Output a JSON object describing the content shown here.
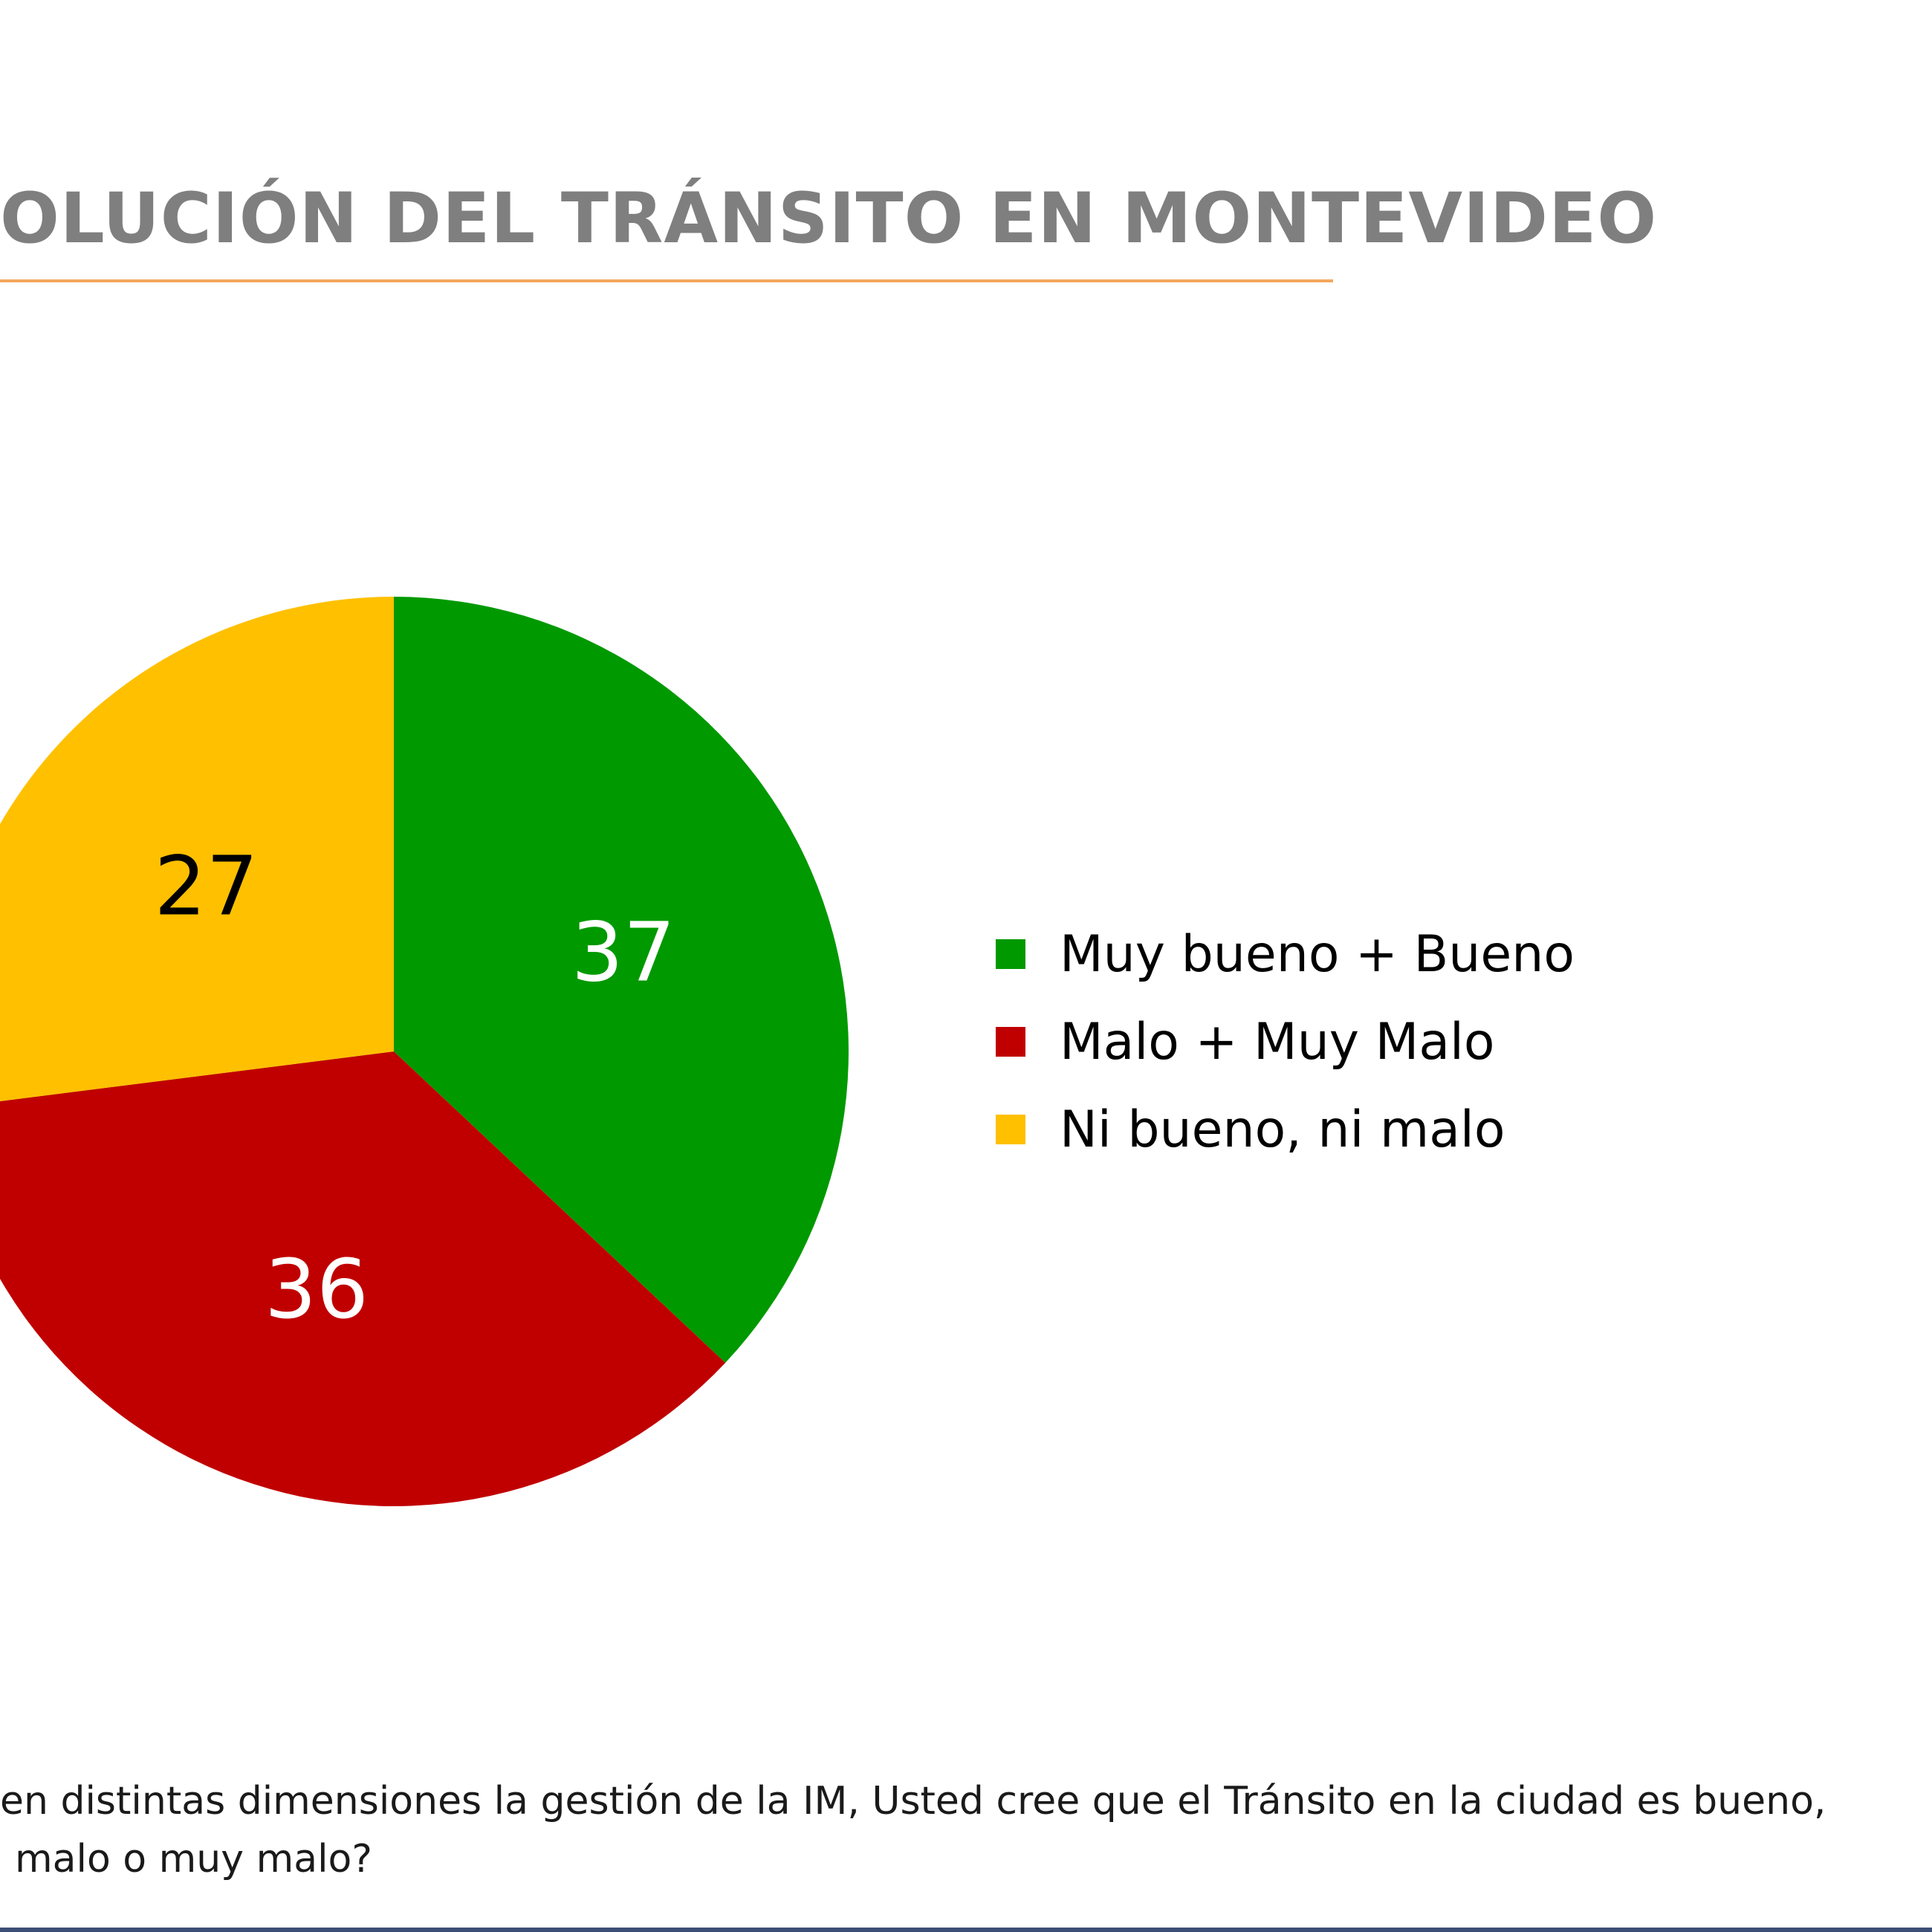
{
  "title": "OLUCIÓN DEL TRÁNSITO EN MONTEVIDEO",
  "colors": {
    "title": "#7f7f7f",
    "rule": "#f4a760",
    "footer_rule": "#3c4f75"
  },
  "chart_data": {
    "type": "pie",
    "title": "",
    "slices": [
      {
        "label": "Muy bueno + Bueno",
        "value": 37,
        "color": "#009900",
        "label_color": "#ffffff"
      },
      {
        "label": "Malo + Muy Malo",
        "value": 36,
        "color": "#c00000",
        "label_color": "#ffffff"
      },
      {
        "label": "Ni bueno, ni malo",
        "value": 27,
        "color": "#ffc000",
        "label_color": "#000000"
      }
    ],
    "start_angle": "12 o'clock",
    "direction": "clockwise",
    "legend_position": "right"
  },
  "question": {
    "line1": "en distintas dimensiones la gestión de la IM, Usted cree que el Tránsito en la ciudad es bueno,",
    "line2": "malo o muy malo?"
  }
}
